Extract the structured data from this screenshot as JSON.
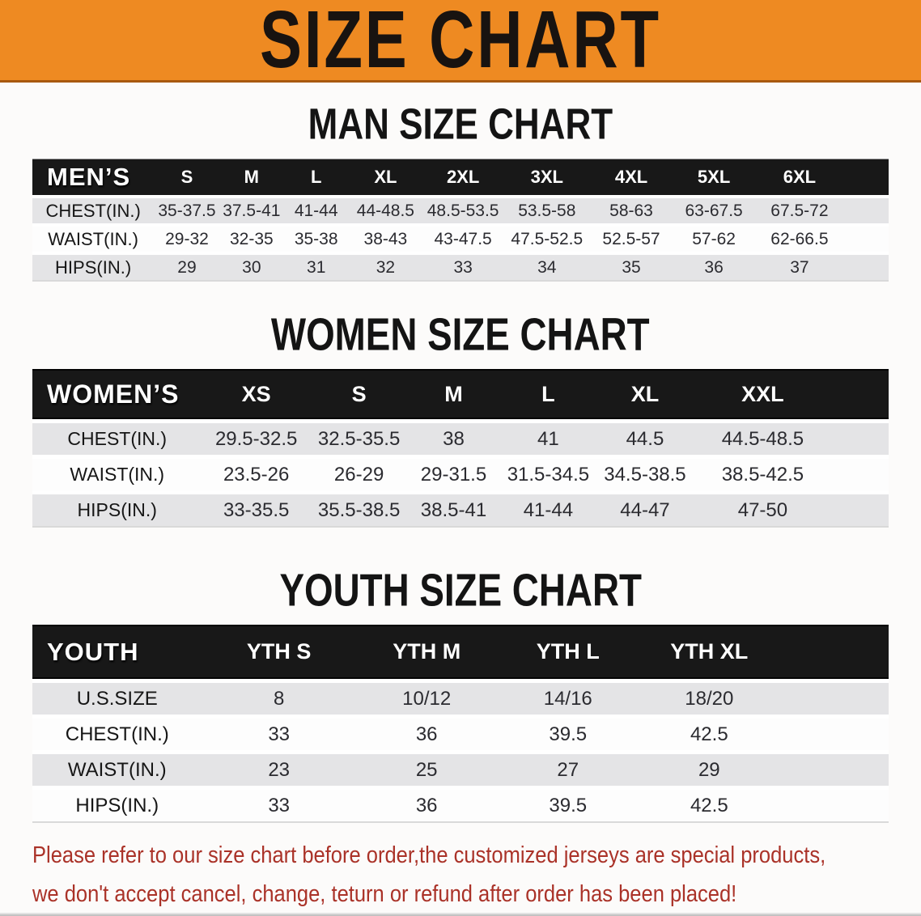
{
  "banner": {
    "title": "SIZE CHART"
  },
  "colors": {
    "banner_bg": "#ee8a22",
    "banner_text": "#181310",
    "header_bg": "#181818",
    "header_text": "#ffffff",
    "row_alt": "#e4e4e6",
    "note_red": "#aa3228"
  },
  "men_section": {
    "heading": "MAN SIZE CHART"
  },
  "women_section": {
    "heading": "WOMEN SIZE CHART"
  },
  "youth_section": {
    "heading": "YOUTH SIZE CHART"
  },
  "men": {
    "group_label": "MEN’S",
    "columns": [
      "S",
      "M",
      "L",
      "XL",
      "2XL",
      "3XL",
      "4XL",
      "5XL",
      "6XL"
    ],
    "rows": [
      {
        "label": "CHEST(IN.)",
        "values": [
          "35-37.5",
          "37.5-41",
          "41-44",
          "44-48.5",
          "48.5-53.5",
          "53.5-58",
          "58-63",
          "63-67.5",
          "67.5-72"
        ]
      },
      {
        "label": "WAIST(IN.)",
        "values": [
          "29-32",
          "32-35",
          "35-38",
          "38-43",
          "43-47.5",
          "47.5-52.5",
          "52.5-57",
          "57-62",
          "62-66.5"
        ]
      },
      {
        "label": "HIPS(IN.)",
        "values": [
          "29",
          "30",
          "31",
          "32",
          "33",
          "34",
          "35",
          "36",
          "37"
        ]
      }
    ]
  },
  "women": {
    "group_label": "WOMEN’S",
    "columns": [
      "XS",
      "S",
      "M",
      "L",
      "XL",
      "XXL"
    ],
    "rows": [
      {
        "label": "CHEST(IN.)",
        "values": [
          "29.5-32.5",
          "32.5-35.5",
          "38",
          "41",
          "44.5",
          "44.5-48.5"
        ]
      },
      {
        "label": "WAIST(IN.)",
        "values": [
          "23.5-26",
          "26-29",
          "29-31.5",
          "31.5-34.5",
          "34.5-38.5",
          "38.5-42.5"
        ]
      },
      {
        "label": "HIPS(IN.)",
        "values": [
          "33-35.5",
          "35.5-38.5",
          "38.5-41",
          "41-44",
          "44-47",
          "47-50"
        ]
      }
    ]
  },
  "youth": {
    "group_label": "YOUTH",
    "columns": [
      "YTH S",
      "YTH M",
      "YTH L",
      "YTH XL"
    ],
    "rows": [
      {
        "label": "U.S.SIZE",
        "values": [
          "8",
          "10/12",
          "14/16",
          "18/20"
        ]
      },
      {
        "label": "CHEST(IN.)",
        "values": [
          "33",
          "36",
          "39.5",
          "42.5"
        ]
      },
      {
        "label": "WAIST(IN.)",
        "values": [
          "23",
          "25",
          "27",
          "29"
        ]
      },
      {
        "label": "HIPS(IN.)",
        "values": [
          "33",
          "36",
          "39.5",
          "42.5"
        ]
      }
    ]
  },
  "note": {
    "line1": "Please refer to our size chart before order,the customized jerseys are special products,",
    "line2": "we don't accept cancel, change, teturn or refund after order has been placed!"
  }
}
